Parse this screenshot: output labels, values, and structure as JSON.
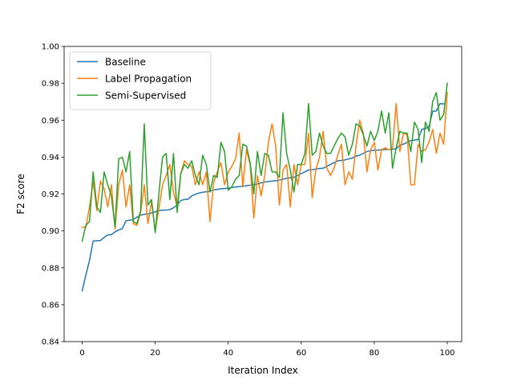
{
  "chart_data": {
    "type": "line",
    "title": "",
    "xlabel": "Iteration Index",
    "ylabel": "F2 score",
    "xlim": [
      -4.95,
      103.95
    ],
    "ylim": [
      0.84,
      1.0
    ],
    "xticks": [
      0,
      20,
      40,
      60,
      80,
      100
    ],
    "yticks": [
      0.84,
      0.86,
      0.88,
      0.9,
      0.92,
      0.94,
      0.96,
      0.98,
      1.0
    ],
    "xtick_labels": [
      "0",
      "20",
      "40",
      "60",
      "80",
      "100"
    ],
    "ytick_labels": [
      "0.84",
      "0.86",
      "0.88",
      "0.90",
      "0.92",
      "0.94",
      "0.96",
      "0.98",
      "1.00"
    ],
    "grid": false,
    "legend_position": "top-left",
    "series": [
      {
        "name": "Baseline",
        "color": "#1f77b4",
        "x_start": 0,
        "values": [
          0.8675,
          0.876,
          0.884,
          0.8945,
          0.8947,
          0.8948,
          0.8965,
          0.8978,
          0.898,
          0.8995,
          0.9005,
          0.9012,
          0.9055,
          0.9058,
          0.9062,
          0.9075,
          0.9085,
          0.909,
          0.9092,
          0.9097,
          0.9103,
          0.911,
          0.9112,
          0.9113,
          0.9115,
          0.9125,
          0.914,
          0.9165,
          0.917,
          0.9172,
          0.919,
          0.9198,
          0.9205,
          0.921,
          0.9212,
          0.9216,
          0.9222,
          0.9225,
          0.9228,
          0.923,
          0.9232,
          0.9235,
          0.9238,
          0.924,
          0.9242,
          0.9245,
          0.9248,
          0.925,
          0.9255,
          0.926,
          0.9265,
          0.9268,
          0.927,
          0.9272,
          0.9275,
          0.928,
          0.9285,
          0.9288,
          0.929,
          0.93,
          0.931,
          0.932,
          0.933,
          0.9332,
          0.9335,
          0.9338,
          0.934,
          0.935,
          0.936,
          0.937,
          0.938,
          0.9382,
          0.9385,
          0.939,
          0.9395,
          0.9405,
          0.941,
          0.942,
          0.943,
          0.9435,
          0.9437,
          0.9438,
          0.944,
          0.9441,
          0.9442,
          0.9443,
          0.9445,
          0.9465,
          0.947,
          0.948,
          0.949,
          0.9492,
          0.9495,
          0.955,
          0.9555,
          0.9565,
          0.9648,
          0.965,
          0.969,
          0.9688
        ]
      },
      {
        "name": "Label Propagation",
        "color": "#ff7f0e",
        "x_start": 0,
        "values": [
          0.902,
          0.902,
          0.913,
          0.927,
          0.911,
          0.927,
          0.923,
          0.913,
          0.925,
          0.901,
          0.925,
          0.933,
          0.913,
          0.925,
          0.904,
          0.903,
          0.91,
          0.925,
          0.904,
          0.916,
          0.9,
          0.912,
          0.925,
          0.93,
          0.936,
          0.921,
          0.913,
          0.931,
          0.938,
          0.936,
          0.935,
          0.925,
          0.932,
          0.925,
          0.932,
          0.905,
          0.926,
          0.932,
          0.937,
          0.925,
          0.932,
          0.935,
          0.939,
          0.953,
          0.924,
          0.944,
          0.936,
          0.907,
          0.93,
          0.919,
          0.93,
          0.948,
          0.958,
          0.946,
          0.914,
          0.933,
          0.936,
          0.913,
          0.936,
          0.925,
          0.936,
          0.936,
          0.953,
          0.918,
          0.933,
          0.94,
          0.954,
          0.934,
          0.93,
          0.934,
          0.941,
          0.947,
          0.925,
          0.932,
          0.928,
          0.946,
          0.96,
          0.953,
          0.932,
          0.944,
          0.948,
          0.933,
          0.944,
          0.945,
          0.944,
          0.945,
          0.969,
          0.943,
          0.953,
          0.952,
          0.925,
          0.925,
          0.947,
          0.943,
          0.944,
          0.948,
          0.955,
          0.942,
          0.953,
          0.947,
          0.975
        ]
      },
      {
        "name": "Semi-Supervised",
        "color": "#2ca02c",
        "x_start": 0,
        "values": [
          0.8945,
          0.903,
          0.905,
          0.932,
          0.913,
          0.91,
          0.932,
          0.925,
          0.919,
          0.902,
          0.939,
          0.94,
          0.932,
          0.943,
          0.905,
          0.904,
          0.911,
          0.958,
          0.914,
          0.917,
          0.899,
          0.92,
          0.94,
          0.942,
          0.917,
          0.942,
          0.91,
          0.931,
          0.936,
          0.934,
          0.938,
          0.93,
          0.925,
          0.941,
          0.936,
          0.921,
          0.93,
          0.929,
          0.948,
          0.943,
          0.922,
          0.924,
          0.928,
          0.93,
          0.947,
          0.946,
          0.937,
          0.92,
          0.943,
          0.93,
          0.942,
          0.941,
          0.932,
          0.932,
          0.929,
          0.964,
          0.942,
          0.933,
          0.921,
          0.936,
          0.936,
          0.942,
          0.969,
          0.941,
          0.943,
          0.953,
          0.946,
          0.942,
          0.942,
          0.946,
          0.95,
          0.953,
          0.951,
          0.941,
          0.947,
          0.958,
          0.957,
          0.952,
          0.946,
          0.954,
          0.949,
          0.954,
          0.965,
          0.953,
          0.964,
          0.934,
          0.945,
          0.954,
          0.953,
          0.953,
          0.943,
          0.959,
          0.955,
          0.937,
          0.959,
          0.954,
          0.97,
          0.975,
          0.96,
          0.963,
          0.98
        ]
      }
    ]
  }
}
